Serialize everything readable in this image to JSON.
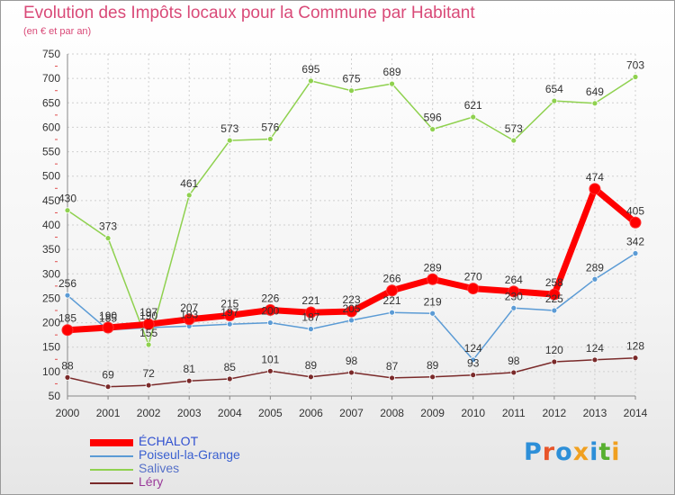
{
  "header": {
    "title": "Evolution des Impôts locaux pour la Commune par Habitant",
    "subtitle": "(en € et par an)"
  },
  "brand": {
    "letters": [
      "P",
      "r",
      "o",
      "x",
      "i",
      "t",
      "i"
    ],
    "colors": [
      "#2d8fd8",
      "#e8552a",
      "#2d8fd8",
      "#f0a020",
      "#2d8fd8",
      "#58b030",
      "#f0a020"
    ]
  },
  "chart_data": {
    "type": "line",
    "title": "Evolution des Impôts locaux pour la Commune par Habitant",
    "subtitle": "(en € et par an)",
    "xlabel": "",
    "ylabel": "",
    "x": [
      "2000",
      "2001",
      "2002",
      "2003",
      "2004",
      "2005",
      "2006",
      "2007",
      "2008",
      "2009",
      "2010",
      "2011",
      "2012",
      "2013",
      "2014"
    ],
    "ylim": [
      50,
      750
    ],
    "yticks": [
      50,
      100,
      150,
      200,
      250,
      300,
      350,
      400,
      450,
      500,
      550,
      600,
      650,
      700,
      750
    ],
    "grid": true,
    "legend_position": "bottom-left",
    "series": [
      {
        "name": "Léry",
        "color": "#7a2a2a",
        "values": [
          88,
          69,
          72,
          81,
          85,
          101,
          89,
          98,
          87,
          89,
          93,
          98,
          120,
          124,
          128
        ],
        "labels": [
          "88",
          "69",
          "72",
          "81",
          "85",
          "101",
          "89",
          "98",
          "87",
          "89",
          "93",
          "98",
          "120",
          "124",
          "128"
        ]
      },
      {
        "name": "Poiseul-la-Grange",
        "color": "#5b9bd5",
        "values": [
          256,
          185,
          190,
          193,
          197,
          200,
          187,
          205,
          221,
          219,
          124,
          230,
          225,
          289,
          342
        ],
        "labels": [
          "256",
          "185",
          "190",
          "193",
          "197",
          "200",
          "187",
          "205",
          "221",
          "219",
          "124",
          "230",
          "225",
          "289",
          "342"
        ]
      },
      {
        "name": "Salives",
        "color": "#8fd14f",
        "values": [
          430,
          373,
          155,
          461,
          573,
          576,
          695,
          675,
          689,
          596,
          621,
          573,
          654,
          649,
          703
        ],
        "labels": [
          "430",
          "373",
          "155",
          "461",
          "573",
          "576",
          "695",
          "675",
          "689",
          "596",
          "621",
          "573",
          "654",
          "649",
          "703"
        ]
      },
      {
        "name": "ÉCHALOT",
        "color": "#ff0000",
        "values": [
          185,
          190,
          197,
          207,
          215,
          226,
          221,
          223,
          266,
          289,
          270,
          264,
          258,
          474,
          405
        ],
        "labels": [
          "185",
          "190",
          "197",
          "207",
          "215",
          "226",
          "221",
          "223",
          "266",
          "289",
          "270",
          "264",
          "258",
          "474",
          "405"
        ]
      }
    ],
    "legend_order": [
      "ÉCHALOT",
      "Poiseul-la-Grange",
      "Salives",
      "Léry"
    ]
  }
}
